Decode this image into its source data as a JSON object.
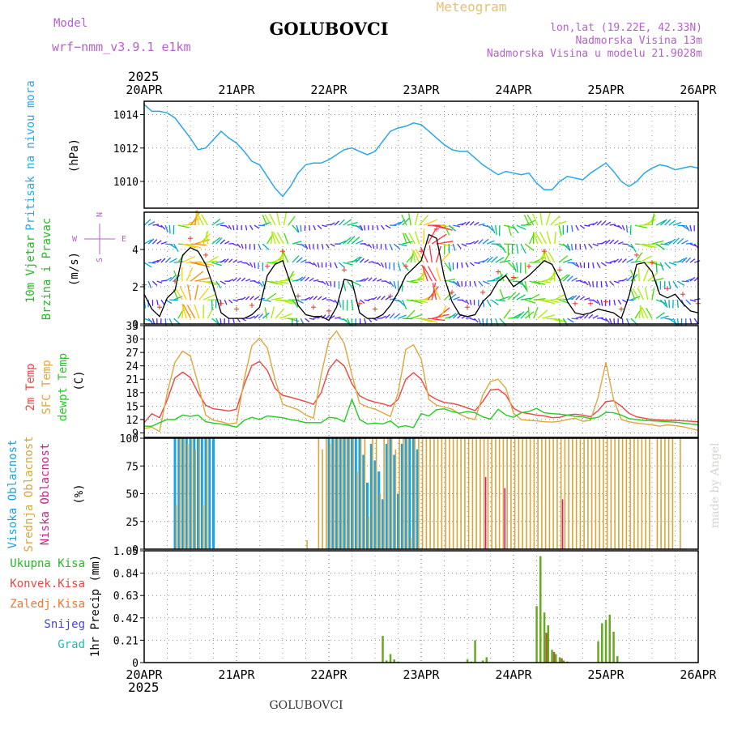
{
  "header": {
    "model_label": "Model",
    "model_name": "wrf−nmm_v3.9.1 e1km",
    "station": "GOLUBOVCI",
    "meteogram": "Meteogram",
    "lonlat": "lon,lat (19.22E, 42.33N)",
    "altitude": "Nadmorska Visina 13m",
    "model_altitude": "Nadmorska Visina u modelu 21.9028m",
    "year": "2025",
    "footer_station": "GOLUBOVCI",
    "watermark": "made by Angel"
  },
  "colors": {
    "pressure": "#2aa7e8",
    "wind_green": "#22bb22",
    "temp_red": "#ee4444",
    "temp_orange": "#e0a63a",
    "dew_green": "#22cc22",
    "cloud_high": "#1aa3e8",
    "cloud_mid": "#d9a53a",
    "cloud_low": "#cc2288",
    "precip_total": "#22bb22",
    "precip_conv": "#ee4444",
    "precip_ice": "#ee7733",
    "precip_snow": "#4444dd",
    "precip_grad": "#22bbaa",
    "title_purple": "#b85fd0",
    "meteogram_orange": "#e8c070"
  },
  "chart_data": [
    {
      "type": "line",
      "name": "pressure",
      "ylabel_main": "Pritisak na nivou mora",
      "ylabel_unit": "(hPa)",
      "x_ticks": [
        "20APR",
        "21APR",
        "22APR",
        "23APR",
        "24APR",
        "25APR",
        "26APR"
      ],
      "xlim_hours": [
        0,
        144
      ],
      "ylim": [
        1008.4,
        1014.8
      ],
      "y_ticks": [
        "1010",
        "1012",
        "1014"
      ],
      "y_tick_values": [
        1010,
        1012,
        1014
      ],
      "grid": true,
      "x": [
        0,
        2,
        4,
        6,
        8,
        10,
        12,
        14,
        16,
        18,
        20,
        22,
        24,
        26,
        28,
        30,
        32,
        34,
        36,
        38,
        40,
        42,
        44,
        46,
        48,
        50,
        52,
        54,
        56,
        58,
        60,
        62,
        64,
        66,
        68,
        70,
        72,
        74,
        76,
        78,
        80,
        82,
        84,
        86,
        88,
        90,
        92,
        94,
        96,
        98,
        100,
        102,
        104,
        106,
        108,
        110,
        112,
        114,
        116,
        118,
        120,
        122,
        124,
        126,
        128,
        130,
        132,
        134,
        136,
        138,
        140,
        142,
        144
      ],
      "values": [
        1014.6,
        1014.2,
        1014.2,
        1014.1,
        1013.8,
        1013.2,
        1012.6,
        1011.9,
        1012.0,
        1012.5,
        1013.0,
        1012.6,
        1012.3,
        1011.8,
        1011.2,
        1011.0,
        1010.3,
        1009.6,
        1009.1,
        1009.7,
        1010.5,
        1011.0,
        1011.1,
        1011.1,
        1011.3,
        1011.6,
        1011.9,
        1012.0,
        1011.8,
        1011.6,
        1011.8,
        1012.4,
        1013.0,
        1013.2,
        1013.3,
        1013.5,
        1013.4,
        1013.0,
        1012.6,
        1012.2,
        1011.9,
        1011.8,
        1011.8,
        1011.4,
        1011.0,
        1010.7,
        1010.4,
        1010.6,
        1010.5,
        1010.4,
        1010.5,
        1009.9,
        1009.5,
        1009.5,
        1010.0,
        1010.3,
        1010.2,
        1010.1,
        1010.5,
        1010.8,
        1011.1,
        1010.6,
        1010.0,
        1009.7,
        1010.0,
        1010.5,
        1010.8,
        1011.0,
        1010.9,
        1010.7,
        1010.8,
        1010.9,
        1010.8
      ]
    },
    {
      "type": "line",
      "name": "wind",
      "ylabel_main": "10m Vjetar",
      "ylabel_sub": "Brzina i Pravac",
      "ylabel_unit": "(m/s)",
      "compass": {
        "n": "N",
        "e": "E",
        "w": "W",
        "s": "S"
      },
      "xlim_hours": [
        0,
        144
      ],
      "ylim": [
        0,
        6
      ],
      "y_ticks": [
        "0",
        "2",
        "4"
      ],
      "y_tick_values": [
        0,
        2,
        4
      ],
      "grid": true,
      "x": [
        0,
        2,
        4,
        6,
        8,
        10,
        12,
        14,
        16,
        18,
        20,
        22,
        24,
        26,
        28,
        30,
        32,
        34,
        36,
        38,
        40,
        42,
        44,
        46,
        48,
        50,
        52,
        54,
        56,
        58,
        60,
        62,
        64,
        66,
        68,
        70,
        72,
        74,
        76,
        78,
        80,
        82,
        84,
        86,
        88,
        90,
        92,
        94,
        96,
        98,
        100,
        102,
        104,
        106,
        108,
        110,
        112,
        114,
        116,
        118,
        120,
        122,
        124,
        126,
        128,
        130,
        132,
        134,
        136,
        138,
        140,
        142,
        144
      ],
      "values": [
        1.6,
        0.8,
        0.4,
        1.4,
        1.8,
        3.7,
        4.1,
        3.9,
        3.2,
        2.0,
        0.6,
        0.3,
        0.3,
        0.3,
        0.5,
        0.9,
        2.6,
        3.2,
        3.4,
        2.2,
        1.0,
        0.5,
        0.4,
        0.4,
        0.2,
        0.9,
        2.4,
        2.3,
        0.6,
        0.3,
        0.3,
        0.5,
        1.0,
        1.7,
        2.6,
        3.0,
        3.4,
        4.8,
        4.6,
        2.5,
        1.2,
        0.5,
        0.4,
        0.5,
        1.2,
        1.6,
        2.3,
        2.6,
        2.0,
        2.3,
        2.6,
        3.0,
        3.4,
        3.2,
        2.4,
        1.2,
        0.6,
        0.5,
        0.6,
        0.8,
        0.7,
        0.6,
        0.3,
        1.5,
        3.2,
        3.3,
        2.8,
        1.6,
        1.4,
        1.6,
        1.1,
        0.7,
        0.6
      ]
    },
    {
      "type": "line",
      "name": "temperature",
      "ylabel_a": "2m Temp",
      "ylabel_b": "SFC Temp",
      "ylabel_c": "dewpt Temp",
      "ylabel_unit": "(C)",
      "xlim_hours": [
        0,
        144
      ],
      "ylim": [
        8,
        33
      ],
      "y_ticks": [
        "9",
        "12",
        "15",
        "18",
        "21",
        "24",
        "27",
        "30",
        "33"
      ],
      "y_tick_values": [
        9,
        12,
        15,
        18,
        21,
        24,
        27,
        30,
        33
      ],
      "grid": true,
      "x": [
        0,
        2,
        4,
        6,
        8,
        10,
        12,
        14,
        16,
        18,
        20,
        22,
        24,
        26,
        28,
        30,
        32,
        34,
        36,
        38,
        40,
        42,
        44,
        46,
        48,
        50,
        52,
        54,
        56,
        58,
        60,
        62,
        64,
        66,
        68,
        70,
        72,
        74,
        76,
        78,
        80,
        82,
        84,
        86,
        88,
        90,
        92,
        94,
        96,
        98,
        100,
        102,
        104,
        106,
        108,
        110,
        112,
        114,
        116,
        118,
        120,
        122,
        124,
        126,
        128,
        130,
        132,
        134,
        136,
        138,
        140,
        142,
        144
      ],
      "series": [
        {
          "name": "2m Temp",
          "color_key": "temp_red",
          "values": [
            11.3,
            13.3,
            12.4,
            16.4,
            21.3,
            22.6,
            21.4,
            18.0,
            15.2,
            14.4,
            14.2,
            13.9,
            14.3,
            19.8,
            24.1,
            25.0,
            23.0,
            19.0,
            17.4,
            17.0,
            16.5,
            16.0,
            15.4,
            18.0,
            23.2,
            25.4,
            24.0,
            20.0,
            17.3,
            16.4,
            15.9,
            15.5,
            15.0,
            16.5,
            21.0,
            22.5,
            21.0,
            17.5,
            16.5,
            15.8,
            15.6,
            15.2,
            14.6,
            14.0,
            16.0,
            18.6,
            18.8,
            17.5,
            14.5,
            13.6,
            13.3,
            13.0,
            12.8,
            12.4,
            12.5,
            13.0,
            13.2,
            13.0,
            12.6,
            14.0,
            16.0,
            16.2,
            15.0,
            13.4,
            12.6,
            12.3,
            12.0,
            11.9,
            11.8,
            11.8,
            11.7,
            11.6,
            11.5
          ]
        },
        {
          "name": "SFC Temp",
          "color_key": "temp_orange",
          "values": [
            10.0,
            10.3,
            9.3,
            18.0,
            24.8,
            27.3,
            26.2,
            20.0,
            13.0,
            11.8,
            11.5,
            11.0,
            11.2,
            21.0,
            28.5,
            30.2,
            28.0,
            21.0,
            15.4,
            14.8,
            14.2,
            13.0,
            12.3,
            22.0,
            29.7,
            31.8,
            29.0,
            22.0,
            15.6,
            14.8,
            14.3,
            13.5,
            12.7,
            18.0,
            27.7,
            28.7,
            25.5,
            16.5,
            15.2,
            14.8,
            14.3,
            13.2,
            12.4,
            12.0,
            17.5,
            20.5,
            21.0,
            19.0,
            13.4,
            12.0,
            11.8,
            11.7,
            11.5,
            11.4,
            11.6,
            12.0,
            12.3,
            11.6,
            11.8,
            17.0,
            24.8,
            16.5,
            12.0,
            11.5,
            11.2,
            11.0,
            10.8,
            10.5,
            10.8,
            10.6,
            10.4,
            10.0,
            9.6
          ]
        },
        {
          "name": "dewpt Temp",
          "color_key": "dew_green",
          "values": [
            10.5,
            10.5,
            11.3,
            12.0,
            12.0,
            13.0,
            12.7,
            13.0,
            11.5,
            11.2,
            11.0,
            10.7,
            10.3,
            11.8,
            12.5,
            12.0,
            12.8,
            12.6,
            12.4,
            12.0,
            11.7,
            11.3,
            11.3,
            11.3,
            12.5,
            12.3,
            11.5,
            16.5,
            12.0,
            11.0,
            11.2,
            11.0,
            11.7,
            10.3,
            10.6,
            10.2,
            13.3,
            12.8,
            14.2,
            14.4,
            13.8,
            13.4,
            13.8,
            13.5,
            12.6,
            12.1,
            14.3,
            13.0,
            12.5,
            13.5,
            13.8,
            14.5,
            13.5,
            13.3,
            13.2,
            13.0,
            12.7,
            12.6,
            12.2,
            12.5,
            13.6,
            13.5,
            13.0,
            12.2,
            12.0,
            11.8,
            11.7,
            11.6,
            11.5,
            11.4,
            11.2,
            11.0,
            10.8
          ]
        }
      ]
    },
    {
      "type": "bar",
      "name": "clouds",
      "ylabel_a": "Visoka Oblacnost",
      "ylabel_b": "Srednja Oblacnost",
      "ylabel_c": "Niska Oblacnost",
      "ylabel_unit": "(%)",
      "xlim_hours": [
        0,
        144
      ],
      "ylim": [
        0,
        100
      ],
      "y_ticks": [
        "0",
        "25",
        "50",
        "75",
        "100"
      ],
      "y_tick_values": [
        0,
        25,
        50,
        75,
        100
      ],
      "grid": true,
      "high_x": [
        8,
        9,
        10,
        11,
        12,
        13,
        14,
        15,
        16,
        17,
        18,
        48,
        49,
        50,
        51,
        52,
        53,
        54,
        55,
        56,
        57,
        58,
        59,
        60,
        61,
        62,
        63,
        64,
        65,
        66,
        67,
        68,
        69,
        70,
        71
      ],
      "high_values": [
        100,
        100,
        100,
        100,
        100,
        100,
        100,
        100,
        100,
        100,
        100,
        100,
        100,
        100,
        100,
        100,
        100,
        100,
        100,
        100,
        85,
        60,
        95,
        80,
        70,
        45,
        95,
        100,
        85,
        50,
        95,
        100,
        100,
        100,
        90
      ],
      "mid_x": [
        8,
        9,
        10,
        11,
        12,
        13,
        14,
        15,
        16,
        42,
        45,
        46,
        47,
        48,
        49,
        50,
        51,
        52,
        53,
        54,
        55,
        56,
        57,
        58,
        59,
        60,
        61,
        62,
        63,
        64,
        65,
        66,
        67,
        68,
        69,
        70,
        71,
        72,
        73,
        74,
        75,
        76,
        77,
        78,
        79,
        80,
        81,
        82,
        83,
        84,
        85,
        86,
        87,
        88,
        89,
        90,
        91,
        92,
        93,
        94,
        95,
        96,
        97,
        98,
        99,
        100,
        101,
        102,
        103,
        104,
        105,
        106,
        107,
        108,
        109,
        110,
        111,
        112,
        113,
        114,
        115,
        116,
        117,
        118,
        119,
        120,
        121,
        122,
        123,
        124,
        125,
        126,
        127,
        128,
        129,
        130,
        131,
        133,
        134,
        135,
        136,
        137,
        139
      ],
      "mid_values": [
        40,
        100,
        100,
        95,
        100,
        90,
        100,
        40,
        100,
        8,
        100,
        90,
        100,
        95,
        100,
        100,
        100,
        100,
        100,
        100,
        70,
        100,
        100,
        30,
        100,
        100,
        50,
        100,
        100,
        100,
        90,
        100,
        100,
        100,
        10,
        100,
        100,
        100,
        100,
        100,
        100,
        100,
        100,
        100,
        100,
        100,
        100,
        100,
        100,
        100,
        100,
        100,
        100,
        100,
        100,
        100,
        100,
        100,
        100,
        100,
        100,
        100,
        100,
        100,
        100,
        100,
        100,
        100,
        100,
        100,
        100,
        100,
        100,
        100,
        100,
        100,
        100,
        100,
        100,
        100,
        100,
        100,
        100,
        100,
        100,
        100,
        100,
        100,
        100,
        100,
        100,
        100,
        100,
        100,
        100,
        100,
        100,
        100,
        100,
        100,
        100,
        100,
        100
      ],
      "low_x": [
        89,
        94,
        109
      ],
      "low_values": [
        65,
        55,
        45
      ]
    },
    {
      "type": "bar",
      "name": "precip",
      "labels": [
        "Ukupna Kisa",
        "Konvek.Kisa",
        "Zaledj.Kisa",
        "Snijeg",
        "Grad"
      ],
      "ylabel_unit": "1hr Precip (mm)",
      "x_ticks": [
        "20APR",
        "21APR",
        "22APR",
        "23APR",
        "24APR",
        "25APR",
        "26APR"
      ],
      "xlim_hours": [
        0,
        144
      ],
      "ylim": [
        0,
        1.05
      ],
      "y_ticks": [
        "0",
        "0.21",
        "0.42",
        "0.63",
        "0.84",
        "1.05"
      ],
      "y_tick_values": [
        0,
        0.21,
        0.42,
        0.63,
        0.84,
        1.05
      ],
      "grid": true,
      "total_x": [
        62,
        63,
        64,
        65,
        66,
        84,
        85,
        86,
        87,
        88,
        89,
        90,
        91,
        92,
        93,
        94,
        95,
        96,
        97,
        98,
        99,
        100,
        101,
        102,
        103,
        104,
        105,
        106,
        107,
        108,
        109,
        110,
        111,
        112,
        113,
        114,
        115,
        116,
        117,
        118,
        119,
        120,
        121,
        122,
        123,
        124,
        125,
        126,
        127,
        128,
        129,
        130,
        131,
        132,
        133,
        134,
        135,
        136,
        137,
        138,
        139,
        140,
        141,
        142
      ],
      "total_values": [
        0.25,
        0.02,
        0.08,
        0.03,
        0.01,
        0.03,
        0.01,
        0.21,
        0.0,
        0.02,
        0.05,
        0.0,
        0.0,
        0.0,
        0.0,
        0.0,
        0.0,
        0.0,
        0.0,
        0.0,
        0.0,
        0.0,
        0.0,
        0.0,
        0.0,
        0.0,
        0.0,
        0.0,
        0.0,
        0.0,
        0.0,
        0.0,
        0.0,
        0.0,
        0.0,
        0.0,
        0.0,
        0.0,
        0.0,
        0.0,
        0.0,
        0.0,
        0.0,
        0.0,
        0.0,
        0.0,
        0.0,
        0.0,
        0.0,
        0.0,
        0.0,
        0.0,
        0.0,
        0.0,
        0.0,
        0.0,
        0.0,
        0.0,
        0.0,
        0.0,
        0.0,
        0.0,
        0.0,
        0.0
      ],
      "total2_x": [
        102,
        103,
        104,
        105,
        106,
        107,
        108,
        109,
        110,
        111,
        118,
        119,
        120,
        121,
        122,
        123
      ],
      "total2_values": [
        0.53,
        1.0,
        0.47,
        0.35,
        0.12,
        0.08,
        0.05,
        0.02,
        0.01,
        0.0,
        0.2,
        0.37,
        0.4,
        0.45,
        0.29,
        0.06
      ],
      "conv_x": [
        104,
        106,
        108
      ],
      "conv_values": [
        0.28,
        0.1,
        0.04
      ]
    }
  ]
}
